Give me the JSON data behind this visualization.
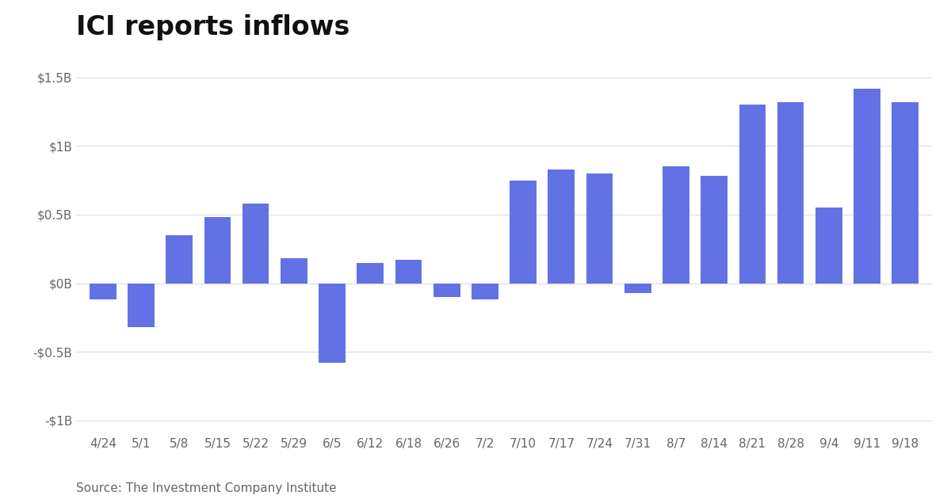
{
  "title": "ICI reports inflows",
  "categories": [
    "4/24",
    "5/1",
    "5/8",
    "5/15",
    "5/22",
    "5/29",
    "6/5",
    "6/12",
    "6/18",
    "6/26",
    "7/2",
    "7/10",
    "7/17",
    "7/24",
    "7/31",
    "8/7",
    "8/14",
    "8/21",
    "8/28",
    "9/4",
    "9/11",
    "9/18"
  ],
  "values": [
    -0.12,
    -0.32,
    0.35,
    0.48,
    0.58,
    0.18,
    -0.58,
    0.15,
    0.17,
    -0.1,
    -0.12,
    0.75,
    0.83,
    0.8,
    -0.07,
    0.85,
    0.78,
    1.3,
    1.32,
    0.55,
    1.42,
    1.32
  ],
  "bar_color": "#6272e4",
  "background_color": "#ffffff",
  "ylim": [
    -1.1,
    1.7
  ],
  "yticks": [
    -1.0,
    -0.5,
    0.0,
    0.5,
    1.0,
    1.5
  ],
  "ytick_labels": [
    "-$1B",
    "-$0.5B",
    "$0B",
    "$0.5B",
    "$1B",
    "$1.5B"
  ],
  "source": "Source: The Investment Company Institute",
  "title_fontsize": 24,
  "tick_fontsize": 11,
  "source_fontsize": 11
}
